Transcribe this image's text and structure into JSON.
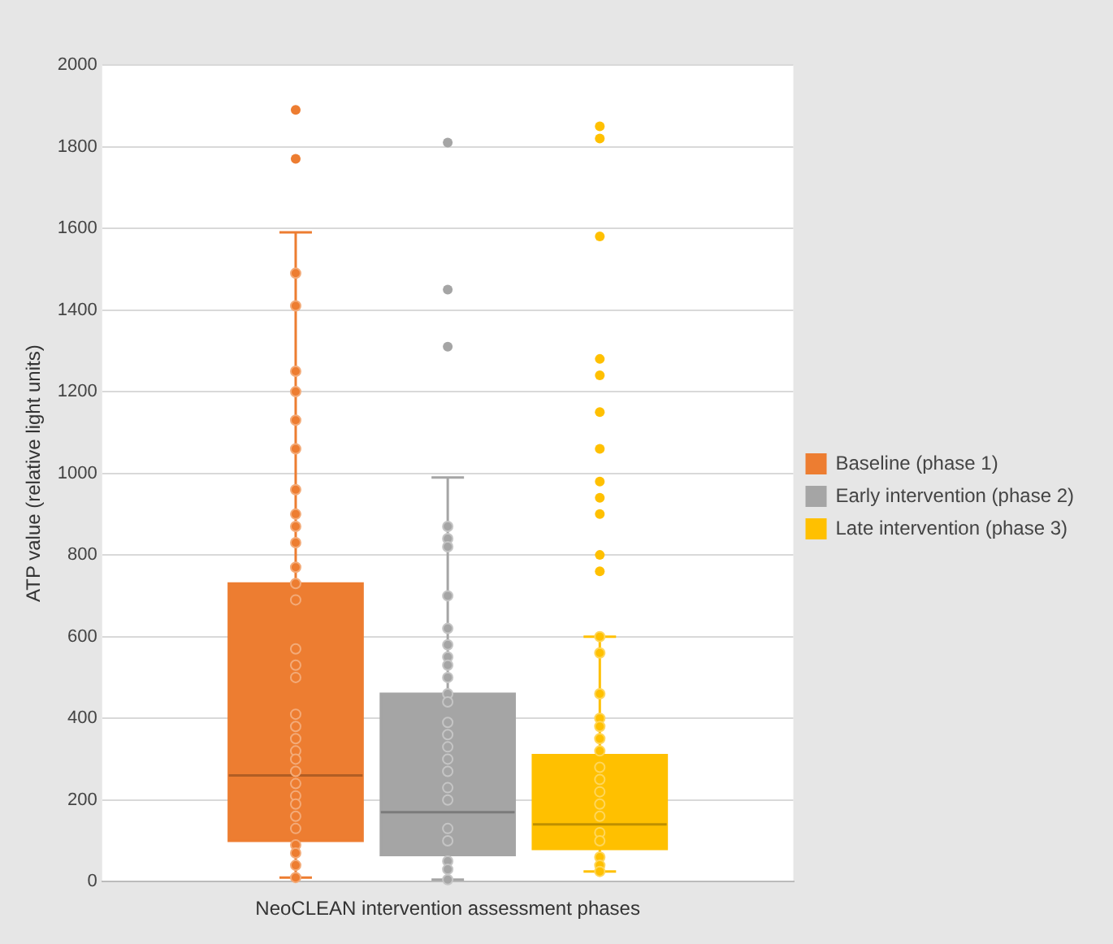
{
  "chart_data": {
    "type": "box",
    "xlabel": "NeoCLEAN intervention assessment phases",
    "ylabel": "ATP value (relative light units)",
    "categories": [
      null
    ],
    "ylim": [
      0,
      2000
    ],
    "yticks": [
      0,
      200,
      400,
      600,
      800,
      1000,
      1200,
      1400,
      1600,
      1800,
      2000
    ],
    "grid": "y",
    "legend": "right",
    "marker": "circle",
    "tick_labels": "y",
    "series": [
      {
        "name": "Baseline (phase 1)",
        "color": "#ed7d31",
        "boxes": [
          {
            "low": 10,
            "q1": 100,
            "median": 260,
            "q3": 730,
            "high": 1590,
            "outliers": [
              1890,
              1770
            ]
          }
        ]
      },
      {
        "name": "Early intervention (phase 2)",
        "color": "#a5a5a5",
        "boxes": [
          {
            "low": 5,
            "q1": 65,
            "median": 170,
            "q3": 460,
            "high": 990,
            "outliers": [
              1810,
              1450,
              1310
            ]
          }
        ]
      },
      {
        "name": "Late intervention (phase 3)",
        "color": "#ffc000",
        "boxes": [
          {
            "low": 25,
            "q1": 80,
            "median": 140,
            "q3": 310,
            "high": 600,
            "outliers": [
              1850,
              1820,
              1580,
              1280,
              1240,
              1150,
              1060,
              980,
              940,
              900,
              800,
              760
            ]
          }
        ]
      },
      {
        "type": "scatter",
        "color": "#ed7d31",
        "x": [
          null,
          null,
          null,
          null,
          null,
          null,
          null,
          null,
          null,
          null,
          null,
          null,
          null,
          null,
          null,
          null,
          null,
          null,
          null,
          null,
          null,
          null,
          null,
          null,
          null,
          null,
          null,
          null,
          null,
          null,
          null
        ],
        "values": [
          1490,
          1410,
          1250,
          1200,
          1130,
          1060,
          960,
          900,
          870,
          830,
          770,
          730,
          690,
          570,
          530,
          500,
          410,
          380,
          350,
          320,
          300,
          270,
          240,
          210,
          190,
          160,
          130,
          90,
          70,
          40,
          10
        ]
      },
      {
        "type": "scatter",
        "color": "#a5a5a5",
        "x": [
          null,
          null,
          null,
          null,
          null,
          null,
          null,
          null,
          null,
          null,
          null,
          null,
          null,
          null,
          null,
          null,
          null,
          null,
          null,
          null,
          null,
          null,
          null
        ],
        "values": [
          870,
          840,
          820,
          700,
          620,
          580,
          550,
          530,
          500,
          460,
          440,
          390,
          360,
          330,
          300,
          270,
          230,
          200,
          130,
          100,
          50,
          30,
          5
        ]
      },
      {
        "type": "scatter",
        "color": "#ffc000",
        "x": [
          null,
          null,
          null,
          null,
          null,
          null,
          null,
          null,
          null,
          null,
          null,
          null,
          null,
          null,
          null,
          null,
          null
        ],
        "values": [
          600,
          560,
          460,
          400,
          380,
          350,
          320,
          280,
          250,
          220,
          190,
          160,
          120,
          100,
          60,
          40,
          25
        ]
      }
    ]
  }
}
